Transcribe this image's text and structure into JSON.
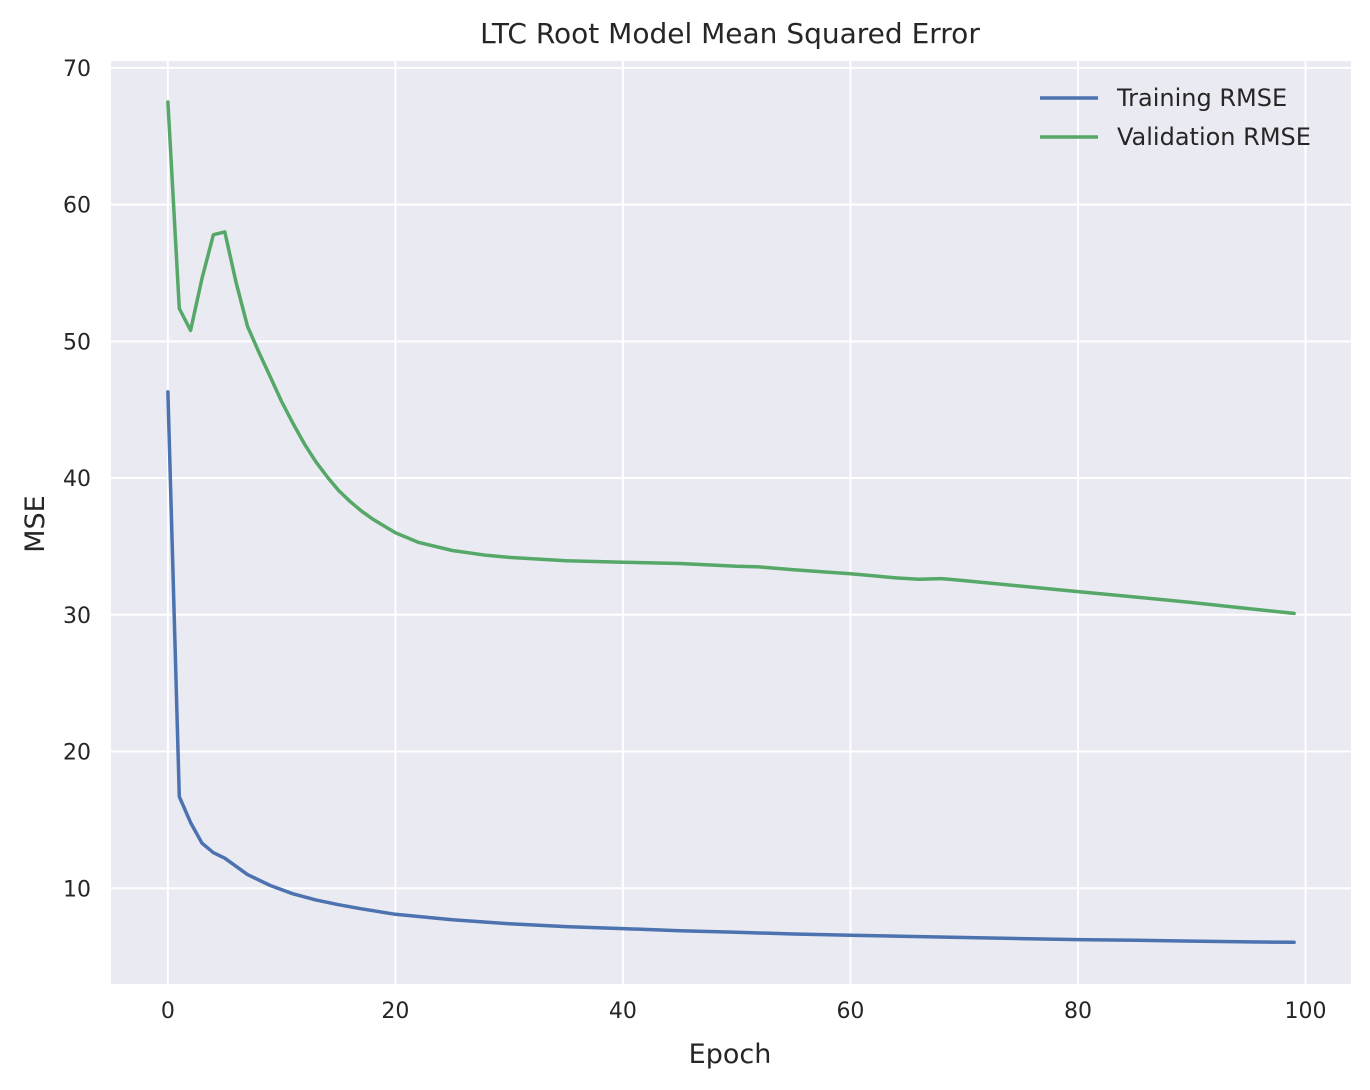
{
  "chart_data": {
    "type": "line",
    "title": "LTC Root Model Mean Squared Error",
    "xlabel": "Epoch",
    "ylabel": "MSE",
    "xlim": [
      -5,
      104
    ],
    "ylim": [
      3,
      70.5
    ],
    "xticks": [
      0,
      20,
      40,
      60,
      80,
      100
    ],
    "yticks": [
      10,
      20,
      30,
      40,
      50,
      60,
      70
    ],
    "grid": true,
    "legend_position": "top-right",
    "colors": {
      "background": "#eaeaf2",
      "grid": "#ffffff",
      "training": "#4c72b0",
      "validation": "#55a868"
    },
    "series": [
      {
        "name": "Training RMSE",
        "color": "#4c72b0",
        "x": [
          0,
          1,
          2,
          3,
          4,
          5,
          7,
          9,
          11,
          13,
          15,
          17,
          20,
          25,
          30,
          35,
          40,
          45,
          50,
          55,
          60,
          65,
          70,
          75,
          80,
          85,
          90,
          95,
          99
        ],
        "values": [
          46.3,
          16.7,
          14.8,
          13.3,
          12.6,
          12.2,
          11.0,
          10.2,
          9.6,
          9.15,
          8.8,
          8.5,
          8.1,
          7.7,
          7.4,
          7.2,
          7.05,
          6.9,
          6.78,
          6.66,
          6.57,
          6.48,
          6.4,
          6.32,
          6.25,
          6.2,
          6.14,
          6.08,
          6.05
        ]
      },
      {
        "name": "Validation RMSE",
        "color": "#55a868",
        "x": [
          0,
          1,
          2,
          3,
          4,
          5,
          6,
          7,
          8,
          9,
          10,
          11,
          12,
          13,
          14,
          15,
          16,
          17,
          18,
          20,
          22,
          25,
          28,
          30,
          35,
          40,
          45,
          50,
          52,
          55,
          60,
          62,
          64,
          66,
          68,
          70,
          75,
          80,
          85,
          90,
          95,
          99
        ],
        "values": [
          67.5,
          52.4,
          50.8,
          54.6,
          57.8,
          58.0,
          54.3,
          51.1,
          49.2,
          47.4,
          45.6,
          44.0,
          42.5,
          41.2,
          40.1,
          39.1,
          38.3,
          37.6,
          37.0,
          36.0,
          35.3,
          34.7,
          34.35,
          34.2,
          33.95,
          33.85,
          33.75,
          33.55,
          33.5,
          33.3,
          33.0,
          32.85,
          32.7,
          32.6,
          32.65,
          32.5,
          32.1,
          31.7,
          31.3,
          30.9,
          30.45,
          30.1
        ]
      }
    ]
  }
}
